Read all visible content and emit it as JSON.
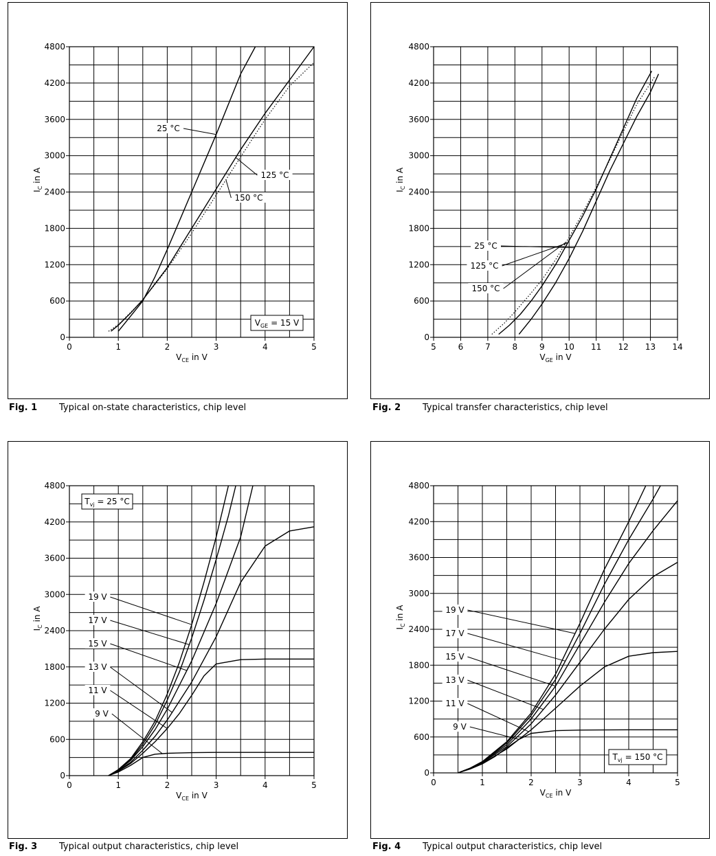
{
  "figures": [
    {
      "fig_label": "Fig. 1",
      "caption": "Typical on-state characteristics, chip level",
      "chart_data": {
        "type": "line",
        "xlabel": "V_CE in V",
        "xlabel_main": "V",
        "xlabel_sub": "CE",
        "xlabel_rest": " in V",
        "ylabel_main": "I",
        "ylabel_sub": "C",
        "ylabel_rest": " in A",
        "xlim": [
          0,
          5
        ],
        "ylim": [
          0,
          4800
        ],
        "xticks": [
          0,
          1,
          2,
          3,
          4,
          5
        ],
        "yticks": [
          0,
          600,
          1200,
          1800,
          2400,
          3000,
          3600,
          4200,
          4800
        ],
        "grid": true,
        "condition": {
          "main": "V",
          "sub": "GE",
          "rest": " = 15 V",
          "placement": "bottom-right"
        },
        "series": [
          {
            "name": "25 °C",
            "style": "solid",
            "x": [
              1.0,
              1.3,
              1.5,
              1.75,
              2.0,
              2.5,
              3.0,
              3.5,
              3.8
            ],
            "y": [
              100,
              400,
              600,
              1000,
              1450,
              2400,
              3350,
              4350,
              4800
            ]
          },
          {
            "name": "125 °C",
            "style": "solid",
            "x": [
              0.85,
              1.0,
              1.25,
              1.5,
              2.0,
              2.5,
              3.0,
              3.5,
              4.0,
              4.5,
              5.0
            ],
            "y": [
              100,
              200,
              400,
              620,
              1150,
              1800,
              2450,
              3100,
              3700,
              4250,
              4800
            ]
          },
          {
            "name": "150 °C",
            "style": "dotted",
            "x": [
              0.8,
              1.0,
              1.25,
              1.5,
              2.0,
              2.5,
              3.0,
              3.5,
              4.0,
              4.5,
              5.0
            ],
            "y": [
              100,
              210,
              410,
              620,
              1130,
              1720,
              2350,
              2980,
              3600,
              4150,
              4540
            ]
          }
        ],
        "annotations": [
          {
            "text": "25 °C",
            "series": 0
          },
          {
            "text": "125 °C",
            "series": 1
          },
          {
            "text": "150 °C",
            "series": 2
          }
        ]
      }
    },
    {
      "fig_label": "Fig. 2",
      "caption": "Typical transfer characteristics, chip level",
      "chart_data": {
        "type": "line",
        "xlabel": "V_GE in V",
        "xlabel_main": "V",
        "xlabel_sub": "GE",
        "xlabel_rest": " in V",
        "ylabel_main": "I",
        "ylabel_sub": "C",
        "ylabel_rest": " in A",
        "xlim": [
          5,
          14
        ],
        "ylim": [
          0,
          4800
        ],
        "xticks": [
          5,
          6,
          7,
          8,
          9,
          10,
          11,
          12,
          13,
          14
        ],
        "yticks": [
          0,
          600,
          1200,
          1800,
          2400,
          3000,
          3600,
          4200,
          4800
        ],
        "grid": true,
        "series": [
          {
            "name": "25 °C",
            "style": "solid",
            "x": [
              8.15,
              8.6,
              9.0,
              9.5,
              10.0,
              10.5,
              11.0,
              11.5,
              12.0,
              12.5,
              13.0,
              13.3
            ],
            "y": [
              50,
              300,
              550,
              900,
              1300,
              1750,
              2250,
              2750,
              3200,
              3650,
              4050,
              4350
            ]
          },
          {
            "name": "125 °C",
            "style": "solid",
            "x": [
              7.4,
              7.8,
              8.2,
              8.6,
              9.0,
              9.5,
              10.0,
              10.5,
              11.0,
              11.5,
              12.0,
              12.5,
              13.05
            ],
            "y": [
              50,
              200,
              380,
              600,
              850,
              1200,
              1600,
              2000,
              2450,
              2950,
              3450,
              3950,
              4400
            ]
          },
          {
            "name": "150 °C",
            "style": "dotted",
            "x": [
              7.15,
              7.6,
              8.0,
              8.5,
              9.0,
              9.5,
              10.0,
              10.5,
              11.0,
              11.5,
              12.0,
              12.5,
              13.15
            ],
            "y": [
              50,
              230,
              420,
              680,
              950,
              1280,
              1650,
              2050,
              2480,
              2930,
              3400,
              3850,
              4300
            ]
          }
        ],
        "annotations": [
          {
            "text": "25 °C",
            "series": 0
          },
          {
            "text": "125 °C",
            "series": 1
          },
          {
            "text": "150 °C",
            "series": 2
          }
        ]
      }
    },
    {
      "fig_label": "Fig. 3",
      "caption": "Typical output characteristics, chip level",
      "chart_data": {
        "type": "line",
        "xlabel": "V_CE in V",
        "xlabel_main": "V",
        "xlabel_sub": "CE",
        "xlabel_rest": " in V",
        "ylabel_main": "I",
        "ylabel_sub": "C",
        "ylabel_rest": " in A",
        "xlim": [
          0,
          5
        ],
        "ylim": [
          0,
          4800
        ],
        "xticks": [
          0,
          1,
          2,
          3,
          4,
          5
        ],
        "yticks": [
          0,
          600,
          1200,
          1800,
          2400,
          3000,
          3600,
          4200,
          4800
        ],
        "grid": true,
        "condition": {
          "main": "T",
          "sub": "vj",
          "rest": " = 25 °C",
          "placement": "top-left"
        },
        "series": [
          {
            "name": "19 V",
            "style": "solid",
            "x": [
              0.8,
              1.0,
              1.25,
              1.5,
              1.75,
              2.0,
              2.25,
              2.5,
              2.75,
              3.0,
              3.25
            ],
            "y": [
              0,
              100,
              280,
              560,
              900,
              1350,
              1880,
              2500,
              3200,
              3950,
              4800
            ]
          },
          {
            "name": "17 V",
            "style": "solid",
            "x": [
              0.8,
              1.0,
              1.25,
              1.5,
              1.75,
              2.0,
              2.25,
              2.5,
              2.75,
              3.0,
              3.25,
              3.4
            ],
            "y": [
              0,
              95,
              265,
              520,
              840,
              1250,
              1720,
              2280,
              2900,
              3580,
              4300,
              4800
            ]
          },
          {
            "name": "15 V",
            "style": "solid",
            "x": [
              0.8,
              1.0,
              1.25,
              1.5,
              1.75,
              2.0,
              2.5,
              3.0,
              3.5,
              3.75
            ],
            "y": [
              0,
              90,
              250,
              480,
              760,
              1100,
              1900,
              2850,
              3950,
              4800
            ]
          },
          {
            "name": "13 V",
            "style": "solid",
            "x": [
              0.8,
              1.0,
              1.25,
              1.5,
              1.75,
              2.0,
              2.5,
              3.0,
              3.5,
              4.0,
              4.5,
              5.0
            ],
            "y": [
              0,
              80,
              220,
              420,
              650,
              920,
              1550,
              2300,
              3200,
              3800,
              4050,
              4120
            ]
          },
          {
            "name": "11 V",
            "style": "solid",
            "x": [
              0.8,
              1.0,
              1.25,
              1.5,
              1.75,
              2.0,
              2.25,
              2.5,
              2.75,
              3.0,
              3.5,
              4.0,
              5.0
            ],
            "y": [
              0,
              75,
              200,
              370,
              560,
              780,
              1030,
              1330,
              1650,
              1850,
              1920,
              1930,
              1930
            ]
          },
          {
            "name": "9 V",
            "style": "solid",
            "x": [
              0.8,
              1.0,
              1.25,
              1.5,
              1.75,
              2.0,
              2.5,
              3.0,
              4.0,
              5.0
            ],
            "y": [
              0,
              60,
              170,
              300,
              355,
              370,
              380,
              385,
              385,
              385
            ]
          }
        ],
        "annotations": [
          {
            "text": "19 V",
            "series": 0
          },
          {
            "text": "17 V",
            "series": 1
          },
          {
            "text": "15 V",
            "series": 2
          },
          {
            "text": "13 V",
            "series": 3
          },
          {
            "text": "11 V",
            "series": 4
          },
          {
            "text": "9 V",
            "series": 5
          }
        ]
      }
    },
    {
      "fig_label": "Fig. 4",
      "caption": "Typical output characteristics, chip level",
      "chart_data": {
        "type": "line",
        "xlabel": "V_CE in V",
        "xlabel_main": "V",
        "xlabel_sub": "CE",
        "xlabel_rest": " in V",
        "ylabel_main": "I",
        "ylabel_sub": "C",
        "ylabel_rest": " in A",
        "xlim": [
          0,
          5
        ],
        "ylim": [
          0,
          4800
        ],
        "xticks": [
          0,
          1,
          2,
          3,
          4,
          5
        ],
        "yticks": [
          0,
          600,
          1200,
          1800,
          2400,
          3000,
          3600,
          4200,
          4800
        ],
        "grid": true,
        "condition": {
          "main": "T",
          "sub": "vj",
          "rest": " = 150 °C",
          "placement": "bottom-right"
        },
        "series": [
          {
            "name": "19 V",
            "style": "solid",
            "x": [
              0.5,
              0.75,
              1.0,
              1.5,
              2.0,
              2.5,
              3.0,
              3.5,
              4.0,
              4.35
            ],
            "y": [
              0,
              80,
              190,
              520,
              1000,
              1650,
              2500,
              3400,
              4200,
              4800
            ]
          },
          {
            "name": "17 V",
            "style": "solid",
            "x": [
              0.5,
              0.75,
              1.0,
              1.5,
              2.0,
              2.5,
              3.0,
              3.5,
              4.0,
              4.5,
              4.65
            ],
            "y": [
              0,
              78,
              185,
              500,
              960,
              1560,
              2330,
              3150,
              3900,
              4580,
              4800
            ]
          },
          {
            "name": "15 V",
            "style": "solid",
            "x": [
              0.5,
              0.75,
              1.0,
              1.5,
              2.0,
              2.5,
              3.0,
              3.5,
              4.0,
              4.5,
              5.0
            ],
            "y": [
              0,
              75,
              180,
              470,
              900,
              1450,
              2150,
              2850,
              3500,
              4050,
              4550
            ]
          },
          {
            "name": "13 V",
            "style": "solid",
            "x": [
              0.5,
              0.75,
              1.0,
              1.5,
              2.0,
              2.5,
              3.0,
              3.5,
              4.0,
              4.5,
              5.0
            ],
            "y": [
              0,
              72,
              170,
              440,
              820,
              1300,
              1850,
              2400,
              2900,
              3280,
              3520
            ]
          },
          {
            "name": "11 V",
            "style": "solid",
            "x": [
              0.5,
              0.75,
              1.0,
              1.5,
              2.0,
              2.5,
              3.0,
              3.5,
              4.0,
              4.5,
              5.0
            ],
            "y": [
              0,
              68,
              160,
              400,
              720,
              1080,
              1450,
              1770,
              1950,
              2010,
              2030
            ]
          },
          {
            "name": "9 V",
            "style": "solid",
            "x": [
              0.5,
              0.75,
              1.0,
              1.25,
              1.5,
              1.75,
              2.0,
              2.5,
              3.0,
              4.0,
              5.0
            ],
            "y": [
              0,
              65,
              150,
              270,
              420,
              560,
              660,
              705,
              715,
              720,
              720
            ]
          }
        ],
        "annotations": [
          {
            "text": "19 V",
            "series": 0
          },
          {
            "text": "17 V",
            "series": 1
          },
          {
            "text": "15 V",
            "series": 2
          },
          {
            "text": "13 V",
            "series": 3
          },
          {
            "text": "11 V",
            "series": 4
          },
          {
            "text": "9 V",
            "series": 5
          }
        ]
      }
    }
  ]
}
